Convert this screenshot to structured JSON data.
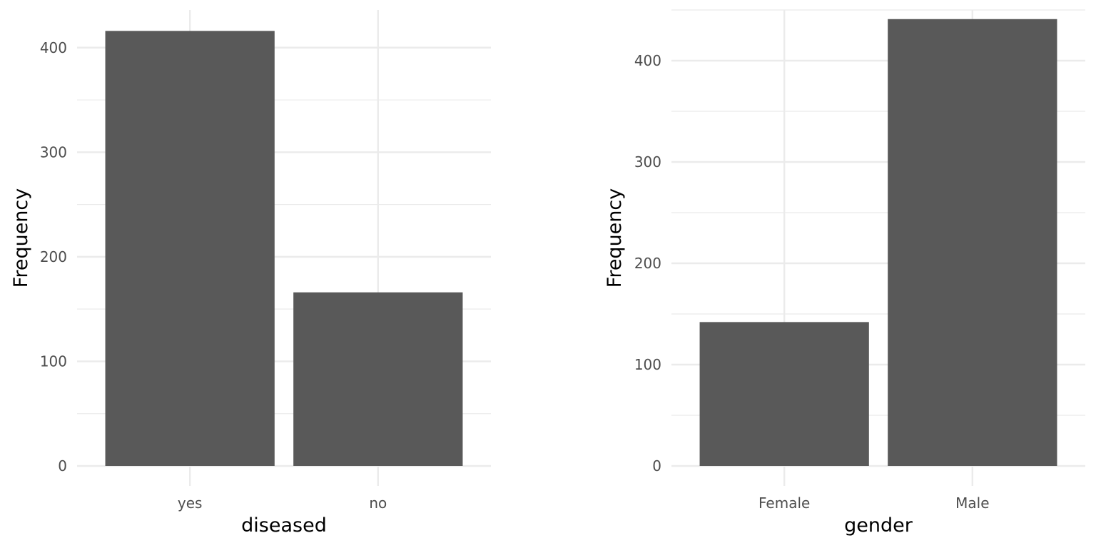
{
  "chart_data": [
    {
      "type": "bar",
      "categories": [
        "yes",
        "no"
      ],
      "values": [
        416,
        166
      ],
      "xlabel": "diseased",
      "ylabel": "Frequency",
      "ylim": [
        0,
        436
      ],
      "yticks": [
        0,
        100,
        200,
        300,
        400
      ],
      "grid": true,
      "bar_color": "#595959",
      "grid_color": "#ebebeb"
    },
    {
      "type": "bar",
      "categories": [
        "Female",
        "Male"
      ],
      "values": [
        142,
        441
      ],
      "xlabel": "gender",
      "ylabel": "Frequency",
      "ylim": [
        0,
        450
      ],
      "yticks": [
        0,
        100,
        200,
        300,
        400
      ],
      "grid": true,
      "bar_color": "#595959",
      "grid_color": "#ebebeb"
    }
  ]
}
